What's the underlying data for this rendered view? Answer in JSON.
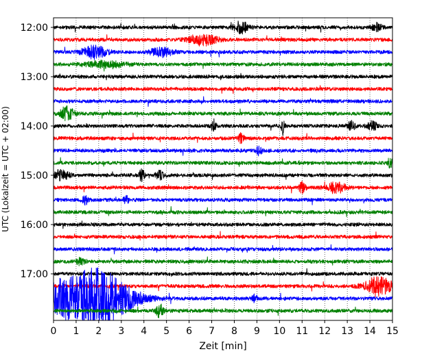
{
  "chart_data": {
    "type": "line",
    "title": "",
    "xlabel": "Zeit  [min]",
    "ylabel": "UTC (Lokalzeit = UTC + 02:00)",
    "xlim": [
      0,
      15
    ],
    "x_ticks": [
      0,
      1,
      2,
      3,
      4,
      5,
      6,
      7,
      8,
      9,
      10,
      11,
      12,
      13,
      14,
      15
    ],
    "x_tick_labels": [
      "0",
      "1",
      "2",
      "3",
      "4",
      "5",
      "6",
      "7",
      "8",
      "9",
      "10",
      "11",
      "12",
      "13",
      "14",
      "15"
    ],
    "y_tick_labels": [
      "12:00",
      "13:00",
      "14:00",
      "15:00",
      "16:00",
      "17:00"
    ],
    "trace_start": "12:00",
    "trace_interval_min": 15,
    "vertical_grid": "dotted",
    "color_cycle": [
      "#000000",
      "#ff0000",
      "#0000ff",
      "#008000"
    ],
    "series": [
      {
        "start": "12:00",
        "color": "#000000",
        "events": [
          {
            "t": 8.3,
            "amp": 0.5,
            "dur": 0.6
          },
          {
            "t": 14.3,
            "amp": 0.35,
            "dur": 0.4
          }
        ]
      },
      {
        "start": "12:15",
        "color": "#ff0000",
        "events": [
          {
            "t": 6.6,
            "amp": 0.45,
            "dur": 1.2
          }
        ]
      },
      {
        "start": "12:30",
        "color": "#0000ff",
        "events": [
          {
            "t": 1.8,
            "amp": 0.55,
            "dur": 1.0
          },
          {
            "t": 4.8,
            "amp": 0.35,
            "dur": 1.0
          }
        ]
      },
      {
        "start": "12:45",
        "color": "#008000",
        "events": [
          {
            "t": 2.3,
            "amp": 0.3,
            "dur": 1.6
          }
        ]
      },
      {
        "start": "13:00",
        "color": "#000000",
        "events": []
      },
      {
        "start": "13:15",
        "color": "#ff0000",
        "events": []
      },
      {
        "start": "13:30",
        "color": "#0000ff",
        "events": []
      },
      {
        "start": "13:45",
        "color": "#008000",
        "events": [
          {
            "t": 0.6,
            "amp": 0.7,
            "dur": 0.5
          }
        ]
      },
      {
        "start": "14:00",
        "color": "#000000",
        "events": [
          {
            "t": 7.1,
            "amp": 0.5,
            "dur": 0.2
          },
          {
            "t": 10.15,
            "amp": 0.75,
            "dur": 0.1
          },
          {
            "t": 13.2,
            "amp": 0.4,
            "dur": 0.3
          },
          {
            "t": 14.1,
            "amp": 0.4,
            "dur": 0.4
          }
        ]
      },
      {
        "start": "14:15",
        "color": "#ff0000",
        "events": [
          {
            "t": 8.3,
            "amp": 0.45,
            "dur": 0.2
          }
        ]
      },
      {
        "start": "14:30",
        "color": "#0000ff",
        "events": [
          {
            "t": 9.1,
            "amp": 0.35,
            "dur": 0.2
          }
        ]
      },
      {
        "start": "14:45",
        "color": "#008000",
        "events": [
          {
            "t": 14.9,
            "amp": 0.45,
            "dur": 0.2
          }
        ]
      },
      {
        "start": "15:00",
        "color": "#000000",
        "events": [
          {
            "t": 0.35,
            "amp": 0.45,
            "dur": 0.6
          },
          {
            "t": 3.9,
            "amp": 0.55,
            "dur": 0.2
          },
          {
            "t": 4.7,
            "amp": 0.35,
            "dur": 0.3
          }
        ]
      },
      {
        "start": "15:15",
        "color": "#ff0000",
        "events": [
          {
            "t": 11.0,
            "amp": 0.45,
            "dur": 0.3
          },
          {
            "t": 12.5,
            "amp": 0.45,
            "dur": 0.8
          }
        ]
      },
      {
        "start": "15:30",
        "color": "#0000ff",
        "events": [
          {
            "t": 1.4,
            "amp": 0.35,
            "dur": 0.2
          },
          {
            "t": 3.2,
            "amp": 0.35,
            "dur": 0.2
          }
        ]
      },
      {
        "start": "15:45",
        "color": "#008000",
        "events": []
      },
      {
        "start": "16:00",
        "color": "#000000",
        "events": []
      },
      {
        "start": "16:15",
        "color": "#ff0000",
        "events": []
      },
      {
        "start": "16:30",
        "color": "#0000ff",
        "events": []
      },
      {
        "start": "16:45",
        "color": "#008000",
        "events": [
          {
            "t": 1.2,
            "amp": 0.35,
            "dur": 0.3
          }
        ]
      },
      {
        "start": "17:00",
        "color": "#000000",
        "events": []
      },
      {
        "start": "17:15",
        "color": "#ff0000",
        "events": [
          {
            "t": 14.4,
            "amp": 0.8,
            "dur": 1.2
          }
        ]
      },
      {
        "start": "17:30",
        "color": "#0000ff",
        "events": [
          {
            "t": 0.25,
            "amp": 0.9,
            "dur": 0.8
          },
          {
            "t": 1.8,
            "amp": 2.7,
            "dur": 3.0
          },
          {
            "t": 8.9,
            "amp": 0.3,
            "dur": 0.2
          }
        ]
      },
      {
        "start": "17:45",
        "color": "#008000",
        "events": [
          {
            "t": 4.7,
            "amp": 0.6,
            "dur": 0.3
          }
        ]
      }
    ]
  }
}
